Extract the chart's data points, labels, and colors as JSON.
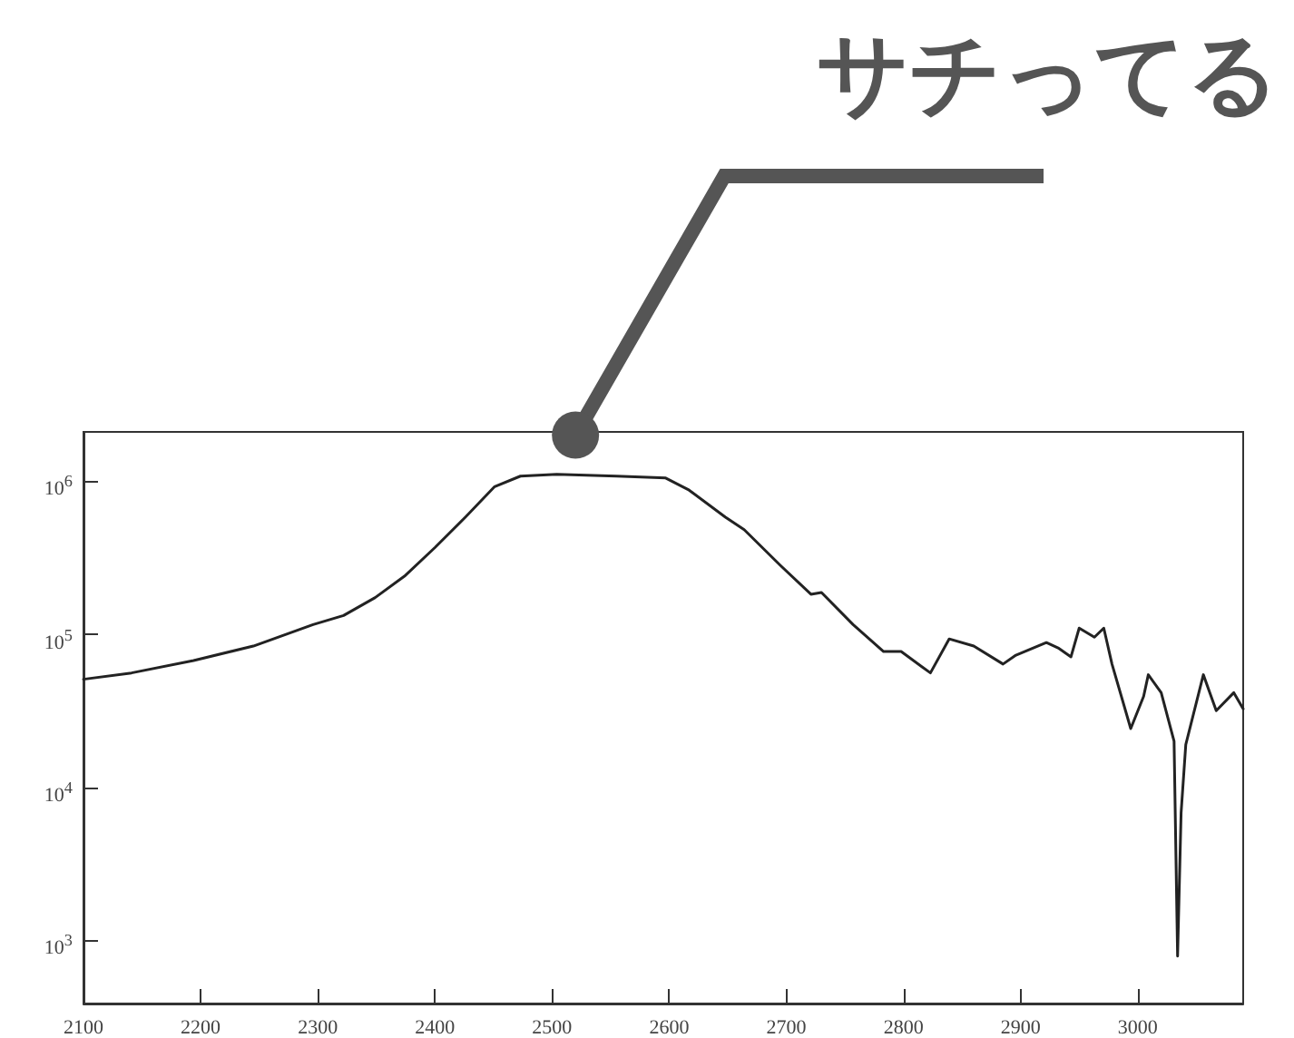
{
  "chart_data": {
    "type": "line",
    "annotations": [
      {
        "text": "サチってる",
        "x": 2520,
        "y": 2000000
      }
    ],
    "x": [
      2100,
      2141,
      2194,
      2245,
      2296,
      2322,
      2349,
      2374,
      2400,
      2426,
      2451,
      2473,
      2504,
      2555,
      2597,
      2617,
      2648,
      2664,
      2695,
      2721,
      2730,
      2757,
      2783,
      2798,
      2823,
      2839,
      2860,
      2885,
      2896,
      2922,
      2932,
      2943,
      2950,
      2963,
      2971,
      2978,
      2994,
      3005,
      3009,
      3020,
      3031,
      3034,
      3037,
      3041,
      3056,
      3067,
      3082,
      3090
    ],
    "series": [
      {
        "color": "#222222",
        "values": [
          51000,
          56100,
          67600,
          84000,
          116000,
          133000,
          174000,
          240000,
          369000,
          583000,
          923000,
          1080000,
          1110000,
          1080000,
          1050000,
          875000,
          583000,
          483000,
          282000,
          183000,
          188000,
          116000,
          77400,
          77400,
          56100,
          93500,
          84000,
          64100,
          73300,
          88500,
          81700,
          71400,
          110000,
          96000,
          110000,
          64100,
          24300,
          39400,
          54600,
          41700,
          20100,
          796,
          6850,
          19100,
          54600,
          31800,
          41700,
          32700
        ]
      }
    ],
    "xlim": [
      2100,
      3090
    ],
    "xticks": [
      2100,
      2200,
      2300,
      2400,
      2500,
      2600,
      2700,
      2800,
      2900,
      3000
    ],
    "ylim": [
      390,
      2100000
    ],
    "yticks": [
      {
        "value": 1000,
        "label": "10$^{3}$"
      },
      {
        "value": 10000,
        "label": "10$^{4}$"
      },
      {
        "value": 100000,
        "label": "10$^{5}$"
      },
      {
        "value": 1000000,
        "label": "10$^{6}$"
      }
    ],
    "log": "y",
    "grid": false,
    "marker": "none",
    "line_style": "solid"
  }
}
